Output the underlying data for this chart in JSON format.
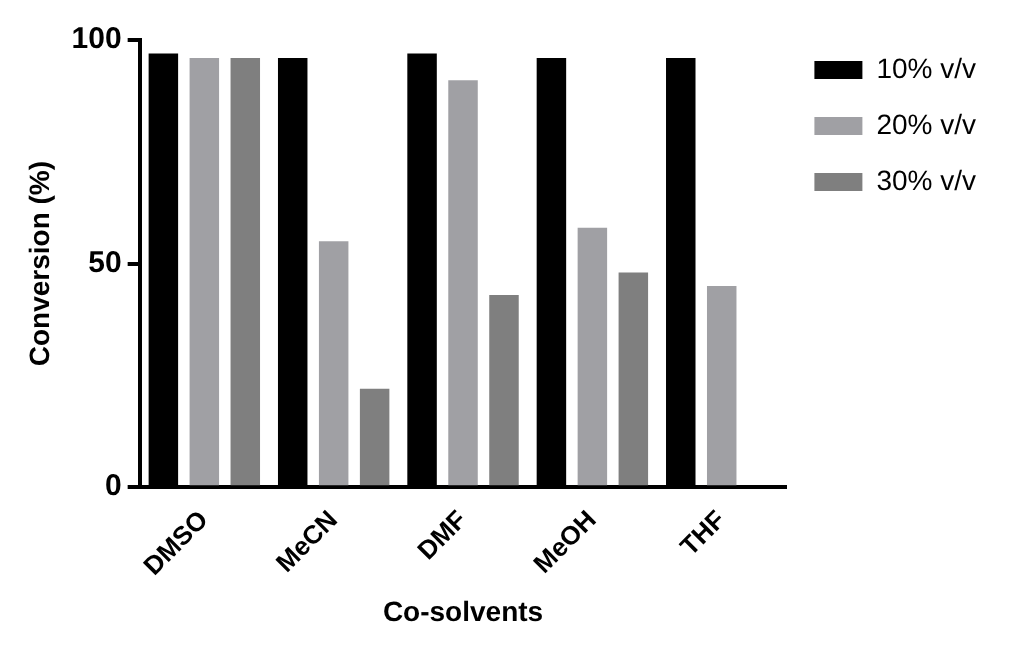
{
  "chart_data": {
    "type": "bar",
    "xlabel": "Co-solvents",
    "ylabel": "Conversion (%)",
    "categories": [
      "DMSO",
      "MeCN",
      "DMF",
      "MeOH",
      "THF"
    ],
    "series": [
      {
        "name": "10% v/v",
        "color": "#000000",
        "values": [
          97,
          96,
          97,
          96,
          96
        ]
      },
      {
        "name": "20% v/v",
        "color": "#a0a0a4",
        "values": [
          96,
          55,
          91,
          58,
          45
        ]
      },
      {
        "name": "30% v/v",
        "color": "#7f7f7f",
        "values": [
          96,
          22,
          43,
          48,
          null
        ]
      }
    ],
    "ylim": [
      0,
      100
    ],
    "yticks": [
      0,
      50,
      100
    ],
    "grid": false,
    "legend": "top right"
  }
}
